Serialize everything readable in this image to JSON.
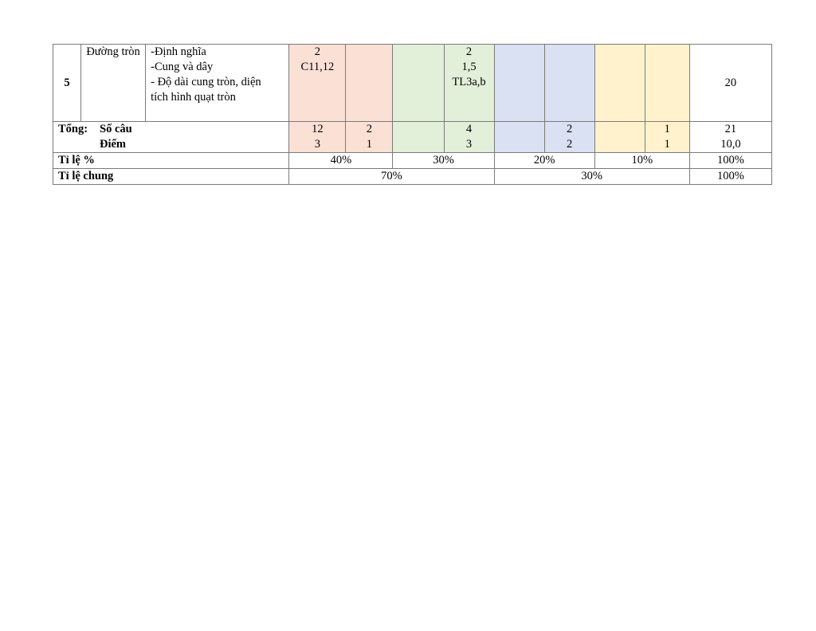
{
  "row5": {
    "stt": "5",
    "topic": "Đường tròn",
    "content_lines": [
      "-Định nghĩa",
      "-Cung và dây",
      "- Độ dài cung tròn, diện",
      "tích hình quạt tròn"
    ],
    "nb_tn": [
      "2",
      "C11,12"
    ],
    "nb_tl": [],
    "th_tn": [],
    "th_tl": [
      "2",
      "1,5",
      "TL3a,b"
    ],
    "vd_tn": [],
    "vd_tl": [],
    "vdc_tn": [],
    "vdc_tl": [],
    "total": "20"
  },
  "totals": {
    "label_main": "Tổng:",
    "label_socau": "Số câu",
    "label_diem": "Điểm",
    "nb_tn": [
      "12",
      "3"
    ],
    "nb_tl": [
      "2",
      "1"
    ],
    "th_tn": [
      "",
      ""
    ],
    "th_tl": [
      "4",
      "3"
    ],
    "vd_tn": [
      "",
      ""
    ],
    "vd_tl": [
      "2",
      "2"
    ],
    "vdc_tn": [
      "",
      ""
    ],
    "vdc_tl": [
      "1",
      "1"
    ],
    "total": [
      "21",
      "10,0"
    ]
  },
  "ratio": {
    "label": "Tỉ lệ %",
    "nb": "40%",
    "th": "30%",
    "vd": "20%",
    "vdc": "10%",
    "total": "100%"
  },
  "ratio_common": {
    "label": "Tỉ lệ chung",
    "low": "70%",
    "high": "30%",
    "total": "100%"
  }
}
